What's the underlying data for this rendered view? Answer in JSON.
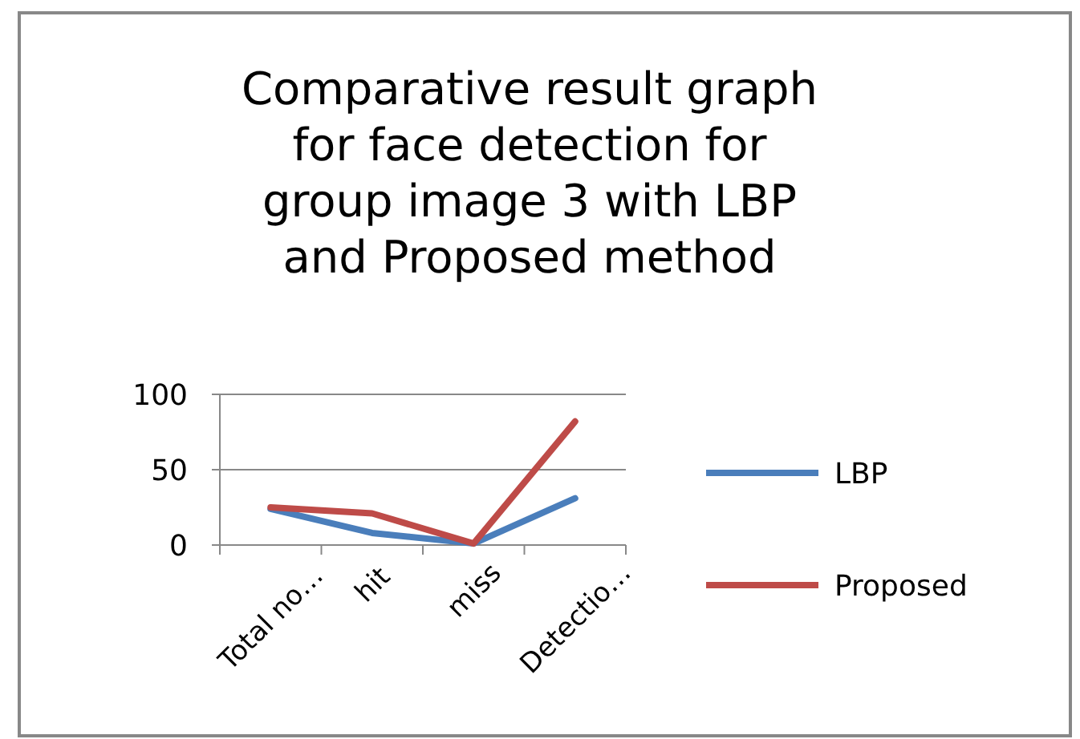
{
  "chart_data": {
    "type": "line",
    "title": "Comparative result graph for face detection for group image 3 with LBP and Proposed method",
    "categories": [
      "Total no…",
      "hit",
      "miss",
      "Detectio…"
    ],
    "series": [
      {
        "name": "LBP",
        "color": "#4a7ebb",
        "values": [
          24,
          8,
          1,
          31
        ]
      },
      {
        "name": "Proposed",
        "color": "#be4b48",
        "values": [
          25,
          21,
          1,
          82
        ]
      }
    ],
    "ylim": [
      0,
      100
    ],
    "yticks": [
      0,
      50,
      100
    ],
    "grid": "y",
    "legend": "right"
  }
}
